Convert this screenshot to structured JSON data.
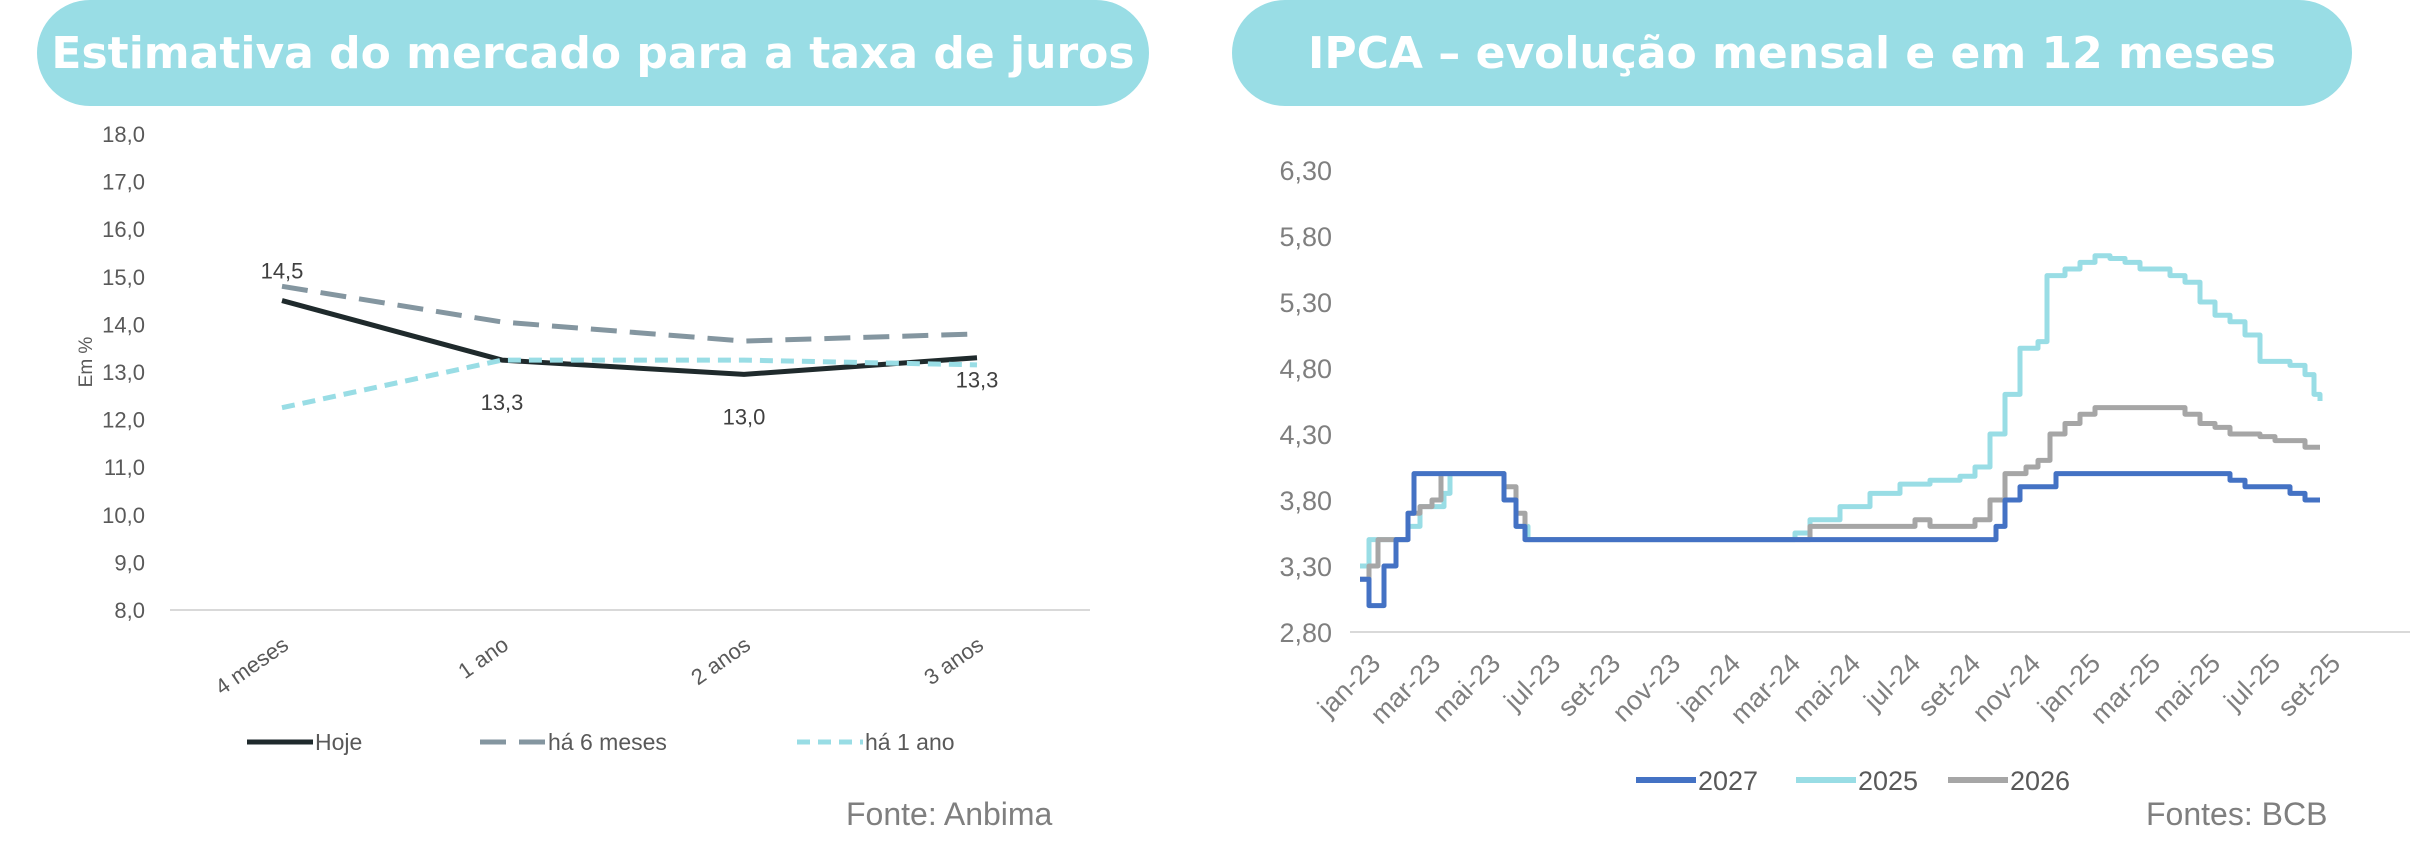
{
  "left": {
    "title": "Estimativa do mercado para a taxa de juros",
    "source": "Fonte: Anbima"
  },
  "right": {
    "title": "IPCA – evolução mensal e em 12 meses",
    "source": "Fontes: BCB"
  },
  "colors": {
    "title_bg": "#99dde5",
    "hoje": "#1f2a2c",
    "ha6": "#8496a0",
    "ha1": "#99dde5",
    "s2027": "#4472c4",
    "s2025": "#99dde5",
    "s2026": "#a6a6a6"
  },
  "chart_data": [
    {
      "type": "line",
      "title": "Estimativa do mercado para a taxa de juros",
      "ylabel": "Em %",
      "ylim": [
        8,
        18
      ],
      "yticks": [
        "8,0",
        "9,0",
        "10,0",
        "11,0",
        "12,0",
        "13,0",
        "14,0",
        "15,0",
        "16,0",
        "17,0",
        "18,0"
      ],
      "categories": [
        "4 meses",
        "1 ano",
        "2 anos",
        "3 anos"
      ],
      "legend_position": "bottom",
      "series": [
        {
          "name": "Hoje",
          "values": [
            14.5,
            13.25,
            12.95,
            13.3
          ],
          "style": "solid",
          "color": "#1f2a2c",
          "labels": [
            "14,5",
            "13,3",
            "13,0",
            "13,3"
          ]
        },
        {
          "name": "há 6 meses",
          "values": [
            14.8,
            14.05,
            13.65,
            13.8
          ],
          "style": "dashed",
          "color": "#8496a0"
        },
        {
          "name": "há 1 ano",
          "values": [
            12.25,
            13.25,
            13.25,
            13.15
          ],
          "style": "dashed",
          "color": "#99dde5"
        }
      ]
    },
    {
      "type": "line",
      "title": "IPCA – evolução mensal e em 12 meses",
      "ylim": [
        2.8,
        6.3
      ],
      "yticks": [
        "2,80",
        "3,30",
        "3,80",
        "4,30",
        "4,80",
        "5,30",
        "5,80",
        "6,30"
      ],
      "x_tick_labels": [
        "jan-23",
        "mar-23",
        "mai-23",
        "jul-23",
        "set-23",
        "nov-23",
        "jan-24",
        "mar-24",
        "mai-24",
        "jul-24",
        "set-24",
        "nov-24",
        "jan-25",
        "mar-25",
        "mai-25",
        "jul-25",
        "set-25"
      ],
      "x_range_months": [
        0,
        34
      ],
      "legend_position": "bottom",
      "series": [
        {
          "name": "2027",
          "color": "#4472c4",
          "points": [
            [
              0,
              3.2
            ],
            [
              0.3,
              3.0
            ],
            [
              0.6,
              3.0
            ],
            [
              0.8,
              3.3
            ],
            [
              1.2,
              3.5
            ],
            [
              1.6,
              3.7
            ],
            [
              1.8,
              4.0
            ],
            [
              2.6,
              4.0
            ],
            [
              4.6,
              4.0
            ],
            [
              4.8,
              3.8
            ],
            [
              5.2,
              3.6
            ],
            [
              5.5,
              3.5
            ],
            [
              6.5,
              3.5
            ],
            [
              12,
              3.5
            ],
            [
              18,
              3.5
            ],
            [
              20.5,
              3.5
            ],
            [
              21.2,
              3.6
            ],
            [
              21.5,
              3.8
            ],
            [
              22,
              3.9
            ],
            [
              22.7,
              3.9
            ],
            [
              23.2,
              4.0
            ],
            [
              26,
              4.0
            ],
            [
              28.5,
              4.0
            ],
            [
              29,
              3.95
            ],
            [
              29.5,
              3.9
            ],
            [
              30.5,
              3.9
            ],
            [
              31,
              3.85
            ],
            [
              31.5,
              3.8
            ],
            [
              32,
              3.8
            ]
          ]
        },
        {
          "name": "2025",
          "color": "#99dde5",
          "points": [
            [
              0,
              3.3
            ],
            [
              0.3,
              3.5
            ],
            [
              1,
              3.5
            ],
            [
              1.6,
              3.6
            ],
            [
              2,
              3.75
            ],
            [
              2.8,
              3.85
            ],
            [
              3,
              4.0
            ],
            [
              4.6,
              4.0
            ],
            [
              4.8,
              3.8
            ],
            [
              5.2,
              3.6
            ],
            [
              5.6,
              3.5
            ],
            [
              6.5,
              3.5
            ],
            [
              12,
              3.5
            ],
            [
              13.5,
              3.5
            ],
            [
              14.5,
              3.55
            ],
            [
              15,
              3.65
            ],
            [
              16,
              3.75
            ],
            [
              17,
              3.85
            ],
            [
              18,
              3.92
            ],
            [
              19,
              3.95
            ],
            [
              20,
              3.98
            ],
            [
              20.5,
              4.05
            ],
            [
              21,
              4.3
            ],
            [
              21.5,
              4.6
            ],
            [
              22,
              4.95
            ],
            [
              22.6,
              5.0
            ],
            [
              22.9,
              5.5
            ],
            [
              23.5,
              5.55
            ],
            [
              24,
              5.6
            ],
            [
              24.5,
              5.65
            ],
            [
              25,
              5.63
            ],
            [
              25.5,
              5.6
            ],
            [
              26,
              5.55
            ],
            [
              27,
              5.5
            ],
            [
              27.5,
              5.45
            ],
            [
              28,
              5.3
            ],
            [
              28.5,
              5.2
            ],
            [
              29,
              5.15
            ],
            [
              29.5,
              5.05
            ],
            [
              30,
              4.85
            ],
            [
              31,
              4.82
            ],
            [
              31.5,
              4.75
            ],
            [
              31.8,
              4.6
            ],
            [
              32,
              4.55
            ]
          ]
        },
        {
          "name": "2026",
          "color": "#a6a6a6",
          "points": [
            [
              0,
              3.2
            ],
            [
              0.3,
              3.3
            ],
            [
              0.6,
              3.5
            ],
            [
              1.2,
              3.5
            ],
            [
              1.6,
              3.7
            ],
            [
              2,
              3.75
            ],
            [
              2.4,
              3.8
            ],
            [
              2.7,
              4.0
            ],
            [
              4.6,
              4.0
            ],
            [
              4.8,
              3.9
            ],
            [
              5.2,
              3.7
            ],
            [
              5.5,
              3.5
            ],
            [
              6.5,
              3.5
            ],
            [
              12,
              3.5
            ],
            [
              14.7,
              3.5
            ],
            [
              15,
              3.6
            ],
            [
              16,
              3.6
            ],
            [
              17,
              3.6
            ],
            [
              18,
              3.6
            ],
            [
              18.5,
              3.65
            ],
            [
              19,
              3.6
            ],
            [
              20,
              3.6
            ],
            [
              20.5,
              3.65
            ],
            [
              21,
              3.8
            ],
            [
              21.5,
              4.0
            ],
            [
              22.2,
              4.05
            ],
            [
              22.6,
              4.1
            ],
            [
              23,
              4.3
            ],
            [
              23.5,
              4.38
            ],
            [
              24,
              4.45
            ],
            [
              24.5,
              4.5
            ],
            [
              26,
              4.5
            ],
            [
              27,
              4.5
            ],
            [
              27.5,
              4.45
            ],
            [
              28,
              4.38
            ],
            [
              28.5,
              4.35
            ],
            [
              29,
              4.3
            ],
            [
              30,
              4.28
            ],
            [
              30.5,
              4.25
            ],
            [
              31,
              4.25
            ],
            [
              31.5,
              4.2
            ],
            [
              32,
              4.2
            ]
          ]
        }
      ]
    }
  ]
}
